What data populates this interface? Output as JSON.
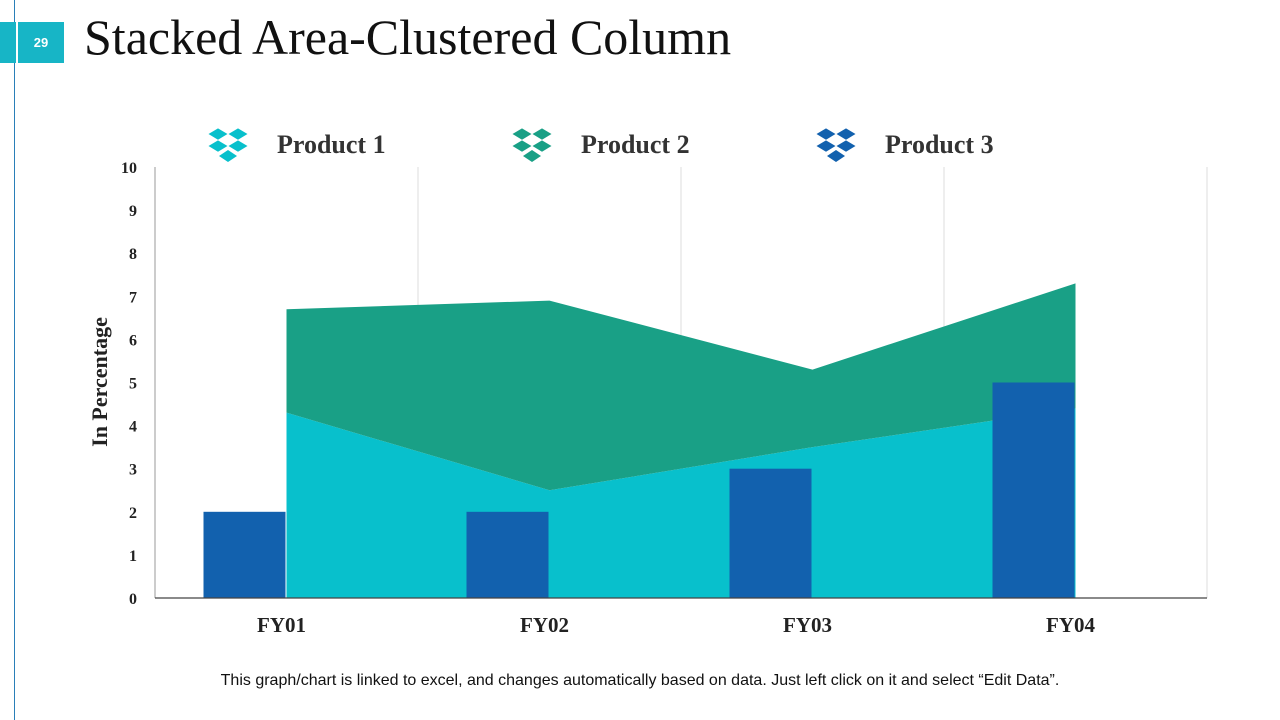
{
  "page": {
    "number": "29",
    "title": "Stacked Area-Clustered Column",
    "footer": "This graph/chart is linked to excel, and changes automatically based on data. Just left click on it and select “Edit Data”."
  },
  "chart_data": {
    "type": "area",
    "ylabel": "In Percentage",
    "ylim": [
      0,
      10
    ],
    "yticks": [
      "0",
      "1",
      "2",
      "3",
      "4",
      "5",
      "6",
      "7",
      "8",
      "9",
      "10"
    ],
    "categories": [
      "FY01",
      "FY02",
      "FY03",
      "FY04"
    ],
    "grid": true,
    "legend_position": "top",
    "series": [
      {
        "name": "Product 1",
        "kind": "area",
        "color": "#08c0cc",
        "icon": "dropbox-icon",
        "values": [
          4.3,
          2.5,
          3.5,
          4.4
        ]
      },
      {
        "name": "Product 2",
        "kind": "area",
        "color": "#19a086",
        "icon": "dropbox-icon",
        "values": [
          2.4,
          4.4,
          1.8,
          2.9
        ]
      },
      {
        "name": "Product 3",
        "kind": "bar",
        "color": "#1261ae",
        "icon": "dropbox-icon",
        "values": [
          2,
          2,
          3,
          5
        ]
      }
    ]
  }
}
